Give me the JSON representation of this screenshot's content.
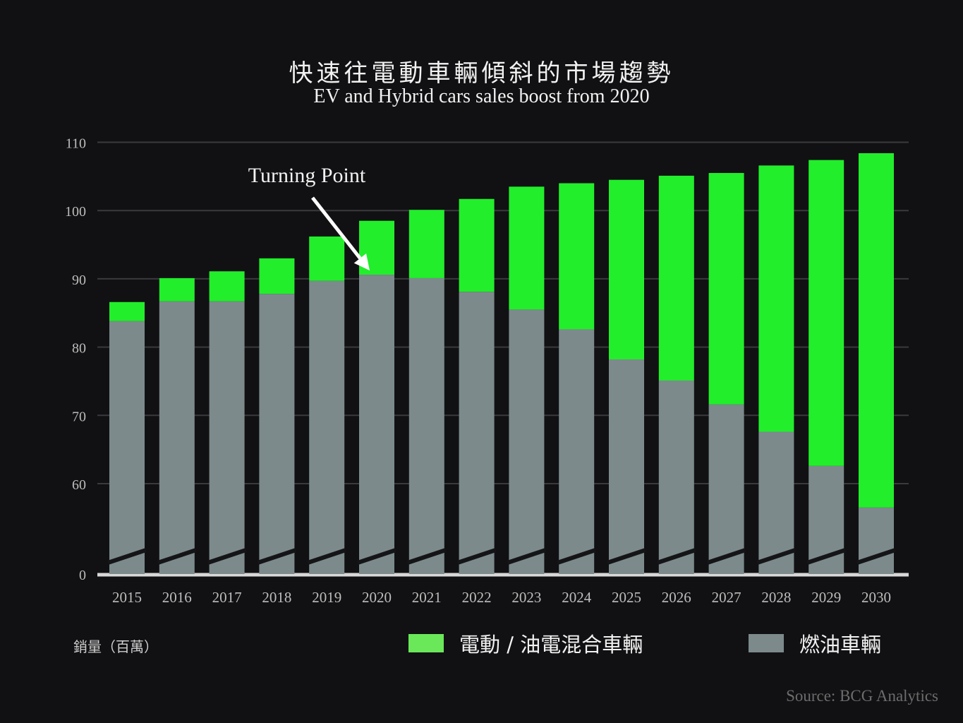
{
  "title": "快速往電動車輛傾斜的市場趨勢",
  "subtitle": "EV and Hybrid cars sales boost from 2020",
  "y_axis_label": "銷量（百萬）",
  "annotation": "Turning Point",
  "source": "Source:  BCG Analytics",
  "colors": {
    "background": "#111113",
    "ev_hybrid": "#22ee2c",
    "ev_hybrid_legend": "#6ae85a",
    "fuel": "#7c8a8c",
    "grid": "#3a3a3e",
    "baseline": "#d8d8d8"
  },
  "chart_data": {
    "type": "bar",
    "stacked": true,
    "axis_break": true,
    "categories": [
      "2015",
      "2016",
      "2017",
      "2018",
      "2019",
      "2020",
      "2021",
      "2022",
      "2023",
      "2024",
      "2025",
      "2026",
      "2027",
      "2028",
      "2029",
      "2030"
    ],
    "series": [
      {
        "name": "燃油車輛",
        "color": "#7c8a8c",
        "values": [
          83.8,
          86.7,
          86.7,
          87.8,
          89.7,
          90.6,
          90.1,
          88.1,
          85.5,
          82.6,
          78.2,
          75.1,
          71.6,
          67.6,
          62.6,
          56.5
        ]
      },
      {
        "name": "電動 / 油電混合車輛",
        "color": "#22ee2c",
        "values": [
          2.8,
          3.4,
          4.4,
          5.2,
          6.5,
          7.9,
          10.0,
          13.6,
          18.0,
          21.4,
          26.3,
          30.0,
          33.9,
          39.0,
          44.8,
          51.9
        ]
      }
    ],
    "y_ticks": [
      "0",
      "60",
      "70",
      "80",
      "90",
      "100",
      "110"
    ],
    "y_break_range": [
      0,
      60
    ],
    "ylim": [
      55,
      110
    ],
    "grid": true,
    "legend_position": "bottom",
    "annotation": {
      "text": "Turning Point",
      "x": "2020"
    }
  }
}
